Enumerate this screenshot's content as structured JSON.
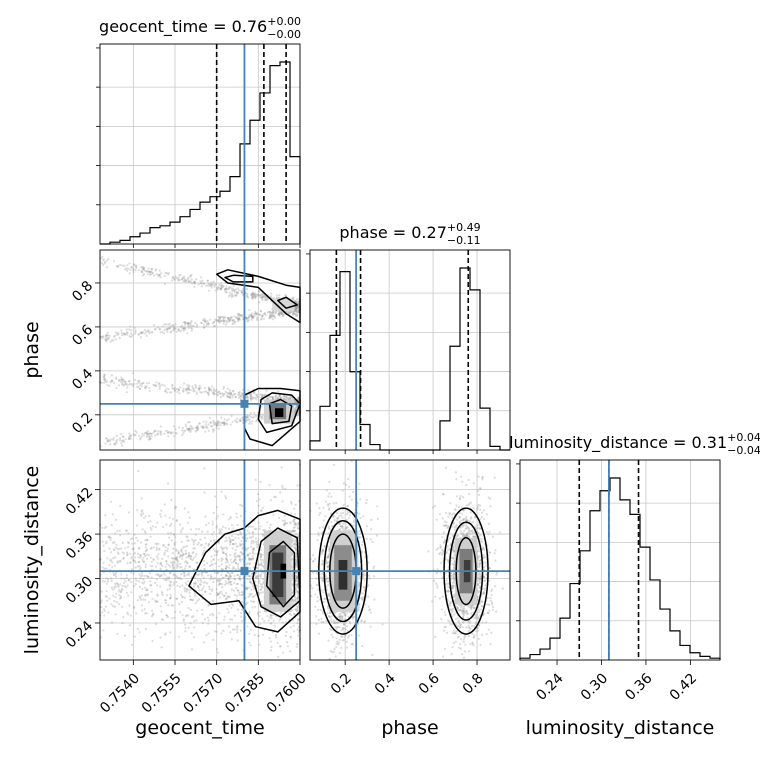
{
  "chart_data": {
    "type": "corner",
    "parameters": [
      {
        "name": "geocent_time",
        "range": [
          0.7528,
          0.76
        ],
        "ticks": [
          "0.7540",
          "0.7555",
          "0.7570",
          "0.7585",
          "0.7600"
        ],
        "tick_values": [
          0.754,
          0.7555,
          0.757,
          0.7585,
          0.76
        ],
        "truth": 0.758,
        "quantiles": [
          0.757,
          0.7587,
          0.7595
        ],
        "title": {
          "base": "geocent_time = 0.76",
          "plus": "+0.00",
          "minus": "−0.00"
        }
      },
      {
        "name": "phase",
        "range": [
          0.04,
          0.95
        ],
        "ticks": [
          "0.2",
          "0.4",
          "0.6",
          "0.8"
        ],
        "tick_values": [
          0.2,
          0.4,
          0.6,
          0.8
        ],
        "truth": 0.25,
        "quantiles": [
          0.16,
          0.27,
          0.76
        ],
        "title": {
          "base": "phase = 0.27",
          "plus": "+0.49",
          "minus": "−0.11"
        }
      },
      {
        "name": "luminosity_distance",
        "range": [
          0.19,
          0.46
        ],
        "ticks": [
          "0.24",
          "0.30",
          "0.36",
          "0.42"
        ],
        "tick_values": [
          0.24,
          0.3,
          0.36,
          0.42
        ],
        "truth": 0.31,
        "quantiles": [
          0.27,
          0.31,
          0.35
        ],
        "title": {
          "base": "luminosity_distance = 0.31",
          "plus": "+0.04",
          "minus": "−0.04"
        }
      }
    ],
    "histograms": {
      "geocent_time": {
        "edges_start": 0.7528,
        "bin_width": 0.00036,
        "values": [
          0,
          0.01,
          0.02,
          0.04,
          0.06,
          0.09,
          0.1,
          0.12,
          0.15,
          0.19,
          0.23,
          0.26,
          0.29,
          0.37,
          0.55,
          0.68,
          0.83,
          0.98,
          1.0,
          0.48
        ]
      },
      "phase": {
        "edges_start": 0.04,
        "bin_width": 0.0455,
        "values": [
          0.05,
          0.24,
          0.63,
          0.98,
          0.43,
          0.14,
          0.03,
          0,
          0,
          0,
          0,
          0,
          0,
          0.16,
          0.57,
          1.0,
          0.88,
          0.23,
          0.02,
          0
        ]
      },
      "luminosity_distance": {
        "edges_start": 0.19,
        "bin_width": 0.0135,
        "values": [
          0.01,
          0.03,
          0.06,
          0.12,
          0.23,
          0.42,
          0.6,
          0.82,
          0.93,
          1.0,
          0.88,
          0.8,
          0.62,
          0.44,
          0.28,
          0.16,
          0.08,
          0.04,
          0.02,
          0.01
        ]
      }
    },
    "grid": true,
    "truth_color": "#4682b4",
    "line_color": "#000000",
    "scatter_color": "#9a9a9a"
  }
}
